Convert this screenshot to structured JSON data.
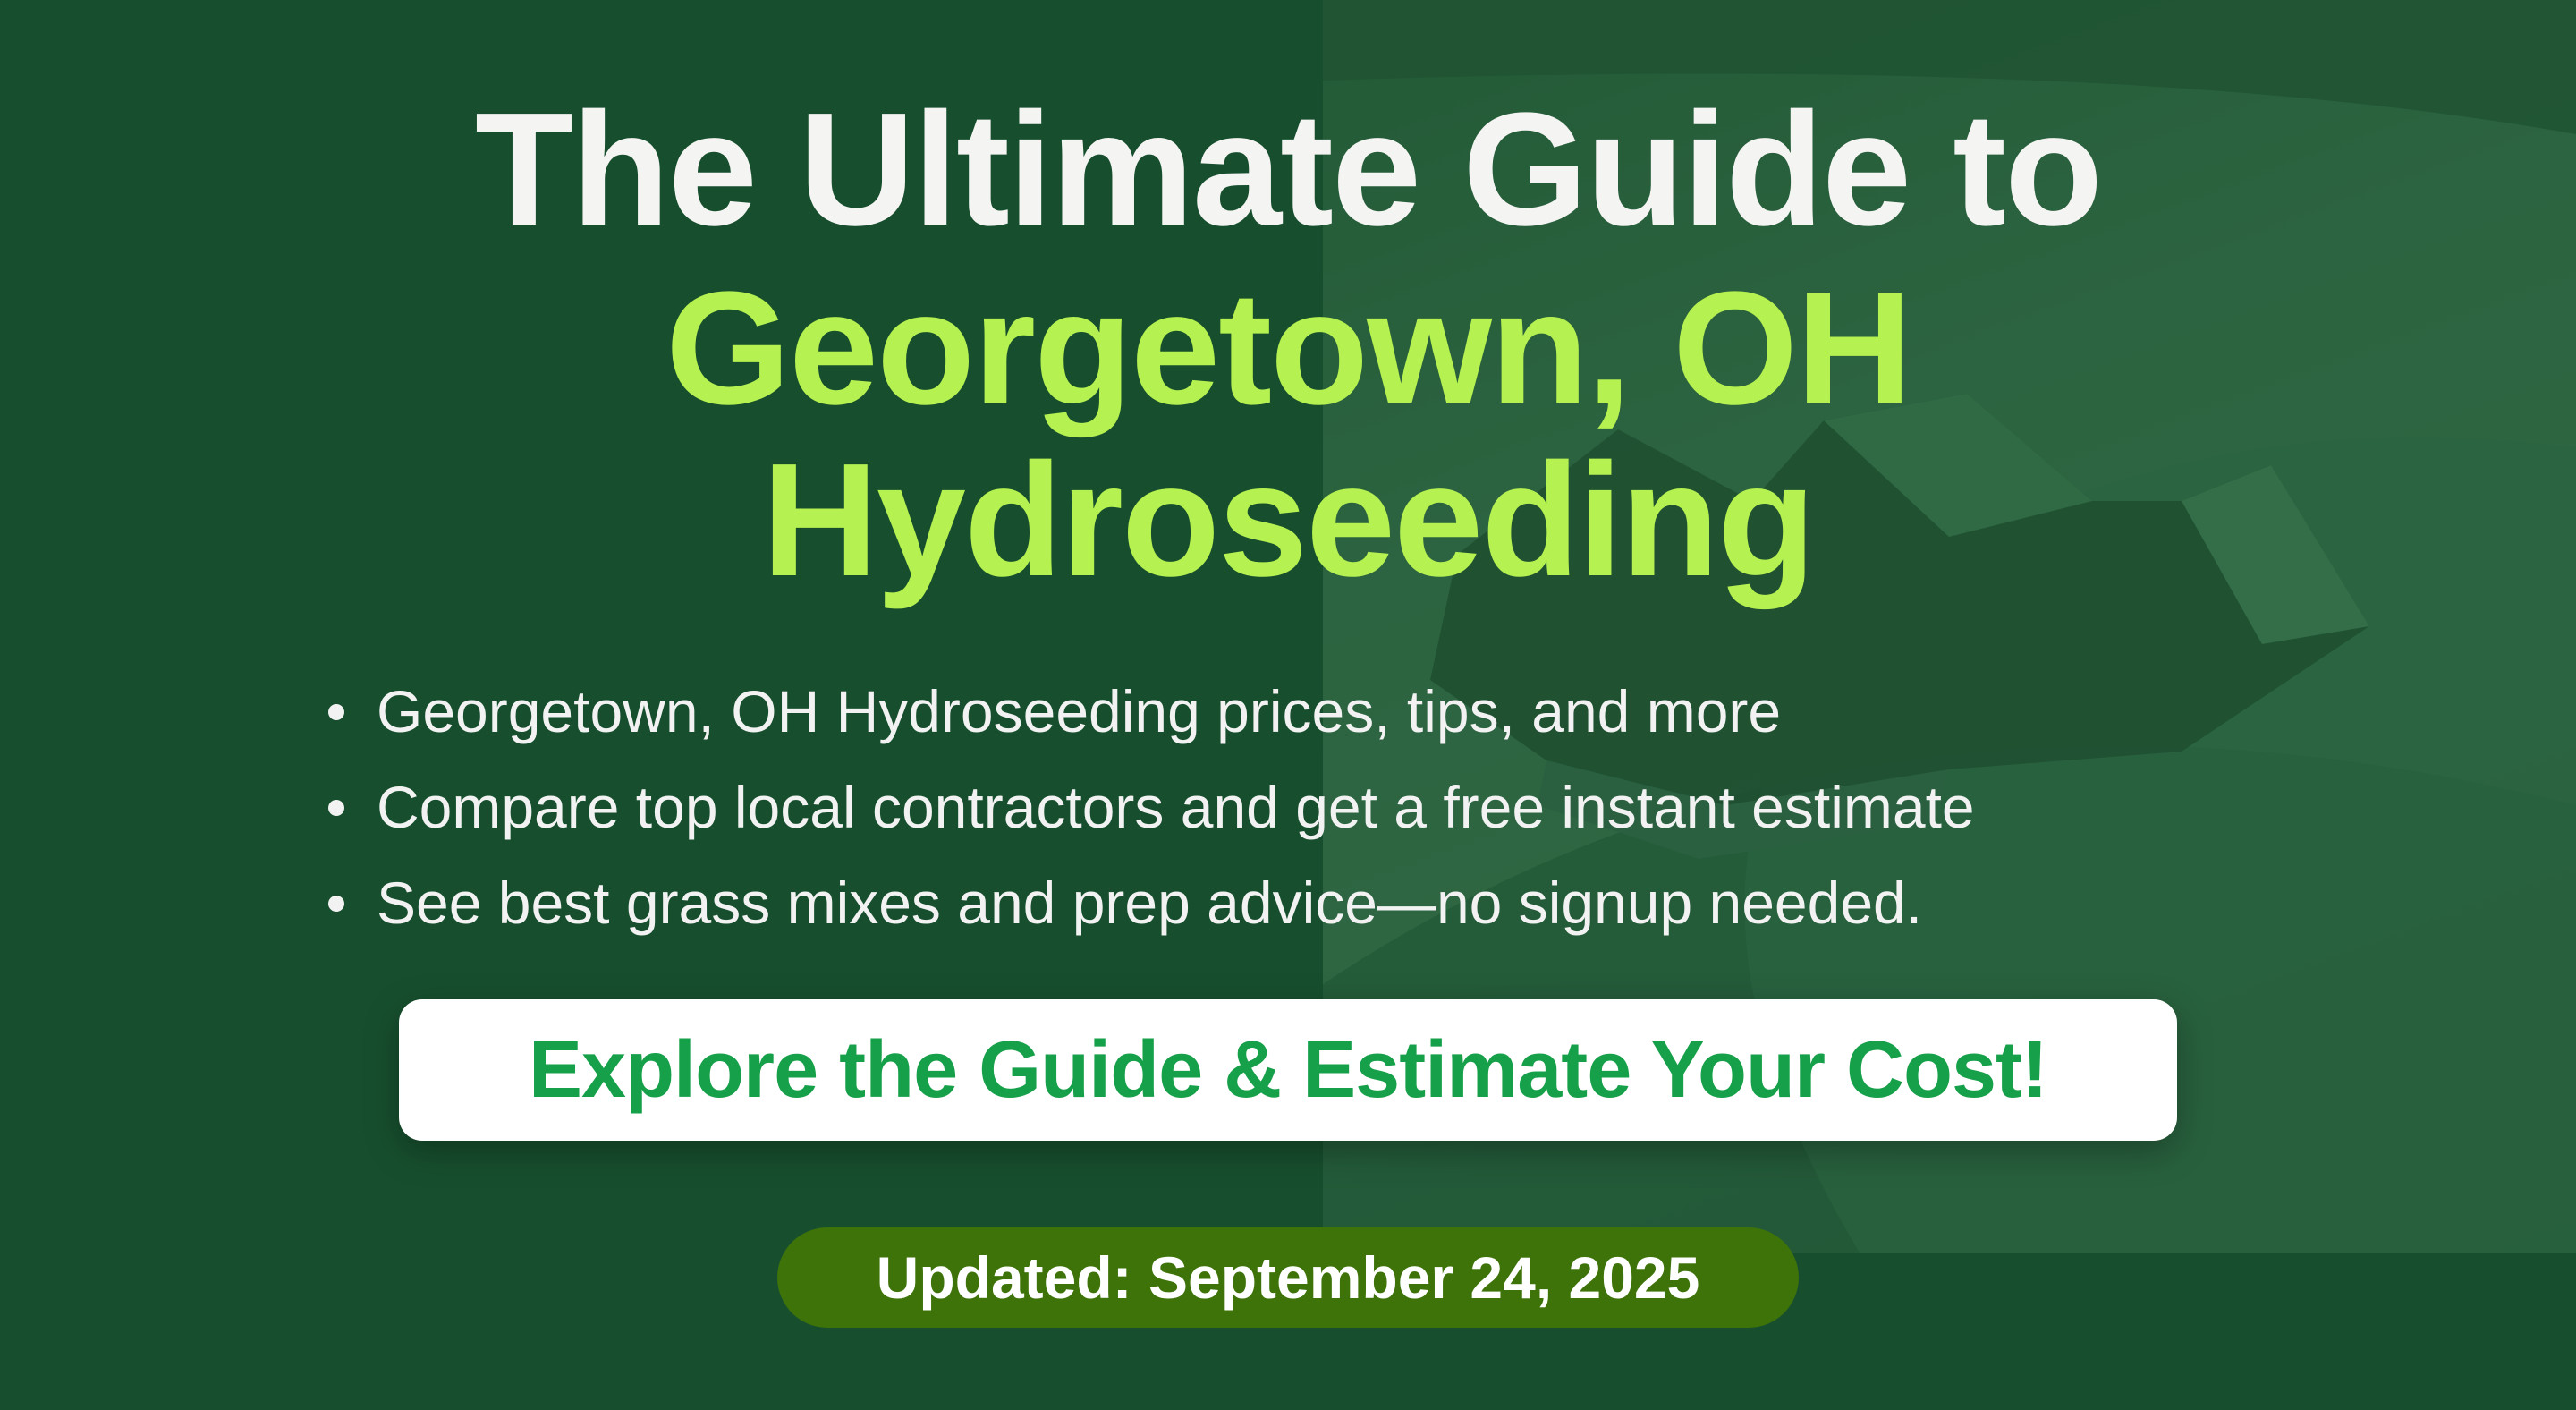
{
  "colors": {
    "background": "#174f2e",
    "title_white": "#f4f4f2",
    "title_accent": "#b5f150",
    "cta_text": "#17a04a",
    "pill_bg": "#3d7309"
  },
  "title": {
    "line1": "The Ultimate Guide to",
    "line2": "Georgetown, OH",
    "line3": "Hydroseeding"
  },
  "bullets": [
    "Georgetown, OH Hydroseeding prices, tips, and more",
    "Compare top local contractors and get a free instant estimate",
    "See best grass mixes and prep advice—no signup needed."
  ],
  "cta": {
    "label": "Explore the Guide & Estimate Your Cost!"
  },
  "updated": {
    "label": "Updated: September 24, 2025"
  }
}
